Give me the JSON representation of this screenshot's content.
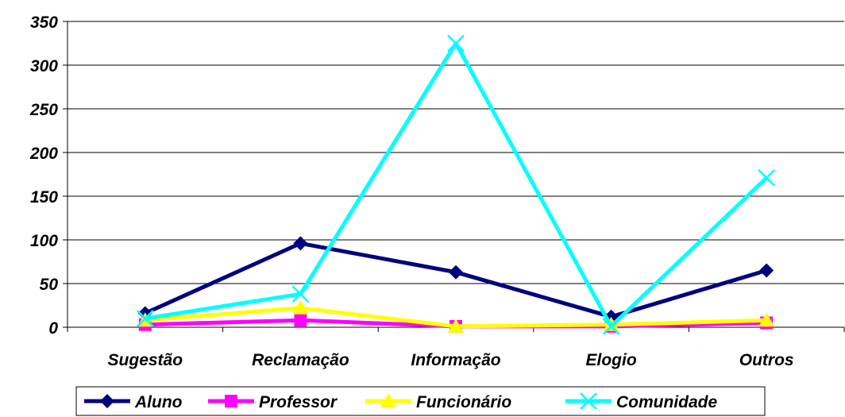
{
  "chart_data": {
    "type": "line",
    "title": "",
    "xlabel": "",
    "ylabel": "",
    "categories": [
      "Sugestão",
      "Reclamação",
      "Informação",
      "Elogio",
      "Outros"
    ],
    "ylim": [
      0,
      350
    ],
    "yticks": [
      "0",
      "50",
      "100",
      "150",
      "200",
      "250",
      "300",
      "350"
    ],
    "grid": "horizontal",
    "legend": "bottom",
    "series": [
      {
        "name": "Aluno",
        "values": [
          16,
          96,
          63,
          12,
          65
        ],
        "color": "#000080",
        "marker": "diamond"
      },
      {
        "name": "Professor",
        "values": [
          3,
          8,
          1,
          1,
          5
        ],
        "color": "#ff00ff",
        "marker": "square"
      },
      {
        "name": "Funcionário",
        "values": [
          8,
          22,
          1,
          3,
          8
        ],
        "color": "#ffff00",
        "marker": "triangle"
      },
      {
        "name": "Comunidade",
        "values": [
          10,
          38,
          325,
          1,
          171
        ],
        "color": "#00ffff",
        "marker": "x"
      }
    ]
  }
}
